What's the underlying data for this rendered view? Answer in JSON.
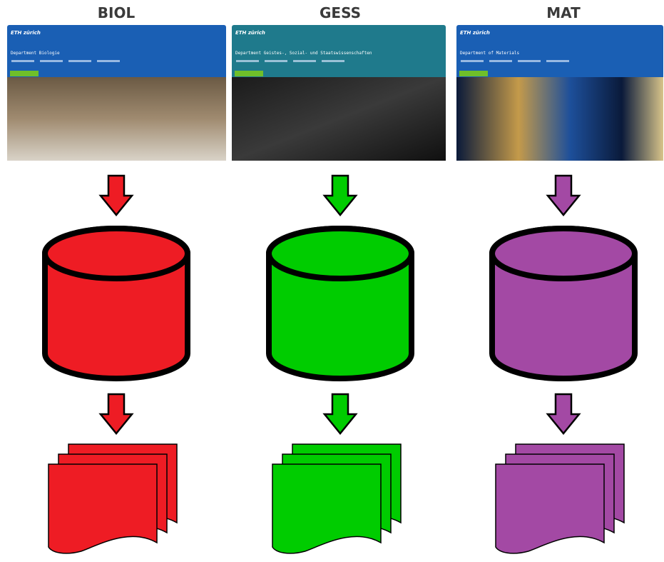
{
  "columns": [
    {
      "title": "BIOL",
      "screenshot": {
        "logo": "ETH zürich",
        "heading": "Department Biologie"
      }
    },
    {
      "title": "GESS",
      "screenshot": {
        "logo": "ETH zürich",
        "heading": "Department Geistes-, Sozial- und Staatswissenschaften"
      }
    },
    {
      "title": "MAT",
      "screenshot": {
        "logo": "ETH zürich",
        "heading": "Department of Materials"
      }
    }
  ]
}
